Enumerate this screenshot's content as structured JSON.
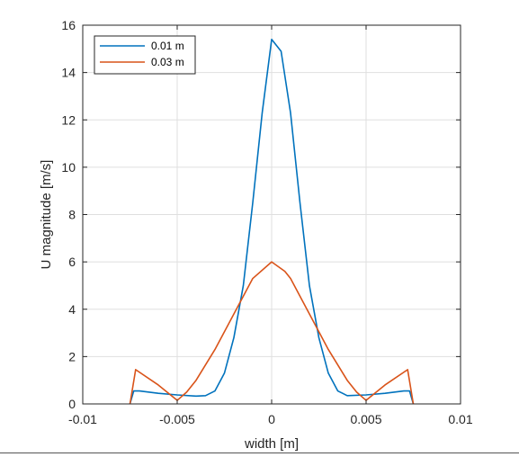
{
  "chart_data": {
    "type": "line",
    "title": "",
    "xlabel": "width [m]",
    "ylabel": "U magnitude [m/s]",
    "xlim": [
      -0.01,
      0.01
    ],
    "ylim": [
      0,
      16
    ],
    "xticks": [
      -0.01,
      -0.005,
      0,
      0.005,
      0.01
    ],
    "xtick_labels": [
      "-0.01",
      "-0.005",
      "0",
      "0.005",
      "0.01"
    ],
    "yticks": [
      0,
      2,
      4,
      6,
      8,
      10,
      12,
      14,
      16
    ],
    "ytick_labels": [
      "0",
      "2",
      "4",
      "6",
      "8",
      "10",
      "12",
      "14",
      "16"
    ],
    "grid": true,
    "legend_position": "top-left",
    "series": [
      {
        "name": "0.01 m",
        "color": "#0072BD",
        "x": [
          -0.0075,
          -0.0073,
          -0.007,
          -0.006,
          -0.005,
          -0.004,
          -0.0035,
          -0.003,
          -0.0025,
          -0.002,
          -0.0015,
          -0.001,
          -0.0005,
          0,
          0.0005,
          0.001,
          0.0015,
          0.002,
          0.0025,
          0.003,
          0.0035,
          0.004,
          0.005,
          0.006,
          0.007,
          0.0073,
          0.0075
        ],
        "y": [
          0,
          0.55,
          0.55,
          0.45,
          0.38,
          0.33,
          0.35,
          0.55,
          1.3,
          2.8,
          5.0,
          8.5,
          12.3,
          15.4,
          14.9,
          12.3,
          8.5,
          5.0,
          2.8,
          1.3,
          0.55,
          0.35,
          0.38,
          0.45,
          0.55,
          0.55,
          0
        ]
      },
      {
        "name": "0.03 m",
        "color": "#D95319",
        "x": [
          -0.0075,
          -0.0072,
          -0.006,
          -0.005,
          -0.0045,
          -0.004,
          -0.003,
          -0.002,
          -0.001,
          0,
          0.0007,
          0.001,
          0.002,
          0.003,
          0.004,
          0.0045,
          0.005,
          0.006,
          0.0072,
          0.0075
        ],
        "y": [
          0,
          1.45,
          0.8,
          0.15,
          0.5,
          1.0,
          2.3,
          3.8,
          5.3,
          6.0,
          5.6,
          5.3,
          3.8,
          2.3,
          1.0,
          0.5,
          0.15,
          0.8,
          1.45,
          0
        ]
      }
    ]
  }
}
